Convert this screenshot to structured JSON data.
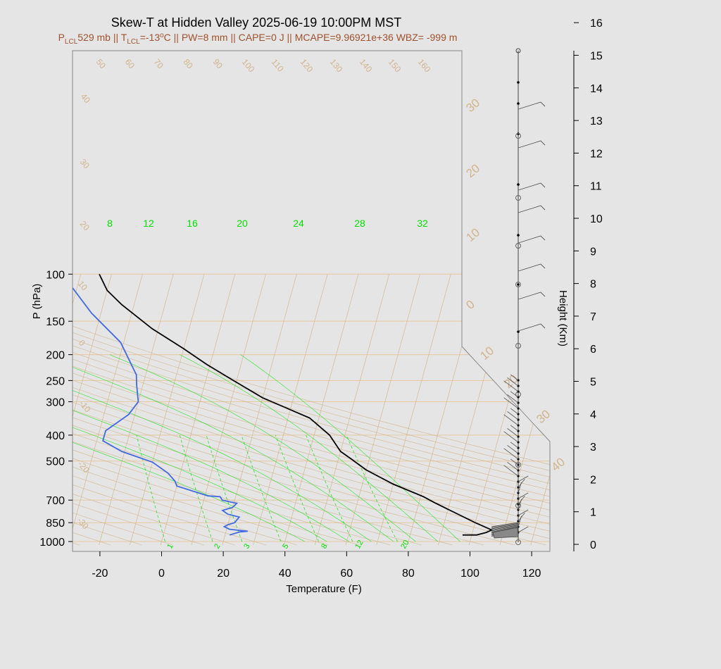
{
  "title": "Skew-T at Hidden Valley 2025-06-19 10:00PM MST",
  "subtitle": "P_LCL=529 mb || T_LCL=-13°C || PW=8 mm || CAPE=0 J || MCAPE=9.96921e+36 WBZ= -999 m",
  "subtitle_parts": {
    "p_lcl": "529 mb",
    "t_lcl": "-13",
    "pw": "PW=8 mm",
    "cape": "CAPE=0 J",
    "mcape": "MCAPE=9.96921e+36",
    "wbz": "WBZ= -999 m"
  },
  "colors": {
    "background": "#e5e5e5",
    "temperature": "#000000",
    "dewpoint": "#4169e1",
    "isotherm": "#d2b48c",
    "mixing_ratio": "#00e000",
    "subtitle": "#a0522d"
  },
  "chart_data": {
    "type": "line",
    "title": "Skew-T at Hidden Valley 2025-06-19 10:00PM MST",
    "xlabel": "Temperature (F)",
    "ylabel": "P (hPa)",
    "y2label": "Height (Km)",
    "xlim": [
      -28,
      125
    ],
    "ylim": [
      1030,
      100
    ],
    "y_scale": "log",
    "x_ticks": [
      -20,
      0,
      20,
      40,
      60,
      80,
      100,
      120
    ],
    "y_ticks": [
      100,
      150,
      200,
      250,
      300,
      400,
      500,
      700,
      850,
      1000
    ],
    "height_ticks": [
      0,
      1,
      2,
      3,
      4,
      5,
      6,
      7,
      8,
      9,
      10,
      11,
      12,
      13,
      14,
      15,
      16
    ],
    "skew_isotherm_labels": [
      -30,
      -20,
      -10,
      0,
      10,
      20,
      30,
      40,
      50,
      60,
      70,
      80,
      90,
      100,
      110,
      120,
      130,
      140,
      150,
      160
    ],
    "big_isotherm_labels": [
      30,
      20,
      10,
      0,
      10,
      20,
      30,
      40
    ],
    "mixing_ratio_top_labels": [
      8,
      12,
      16,
      20,
      24,
      28,
      32
    ],
    "mixing_ratio_bottom_labels": [
      1,
      2,
      3,
      5,
      8,
      12,
      20
    ],
    "series": [
      {
        "name": "Temperature",
        "points": [
          [
            97,
            945
          ],
          [
            101.5,
            945
          ],
          [
            104.5,
            925
          ],
          [
            106,
            905
          ],
          [
            100,
            850
          ],
          [
            92,
            775
          ],
          [
            85,
            715
          ],
          [
            81,
            680
          ],
          [
            78,
            660
          ],
          [
            70,
            610
          ],
          [
            60,
            540
          ],
          [
            54,
            490
          ],
          [
            50,
            460
          ],
          [
            45,
            400
          ],
          [
            37,
            345
          ],
          [
            20,
            290
          ],
          [
            9,
            250
          ],
          [
            -1,
            218
          ],
          [
            -10,
            190
          ],
          [
            -22,
            160
          ],
          [
            -34,
            130
          ],
          [
            -40,
            115
          ],
          [
            -44,
            100
          ]
        ]
      },
      {
        "name": "Dewpoint",
        "points": [
          [
            21.5,
            945
          ],
          [
            24.5,
            920
          ],
          [
            27,
            915
          ],
          [
            21,
            900
          ],
          [
            19,
            880
          ],
          [
            20,
            865
          ],
          [
            22,
            850
          ],
          [
            23,
            810
          ],
          [
            19,
            790
          ],
          [
            17,
            765
          ],
          [
            20,
            745
          ],
          [
            21,
            720
          ],
          [
            16,
            700
          ],
          [
            15,
            680
          ],
          [
            11,
            675
          ],
          [
            0,
            620
          ],
          [
            -1,
            595
          ],
          [
            -4,
            555
          ],
          [
            -10,
            505
          ],
          [
            -21,
            460
          ],
          [
            -28,
            420
          ],
          [
            -28,
            385
          ],
          [
            -22,
            335
          ],
          [
            -20,
            300
          ],
          [
            -22,
            260
          ],
          [
            -23,
            238
          ],
          [
            -31,
            180
          ],
          [
            -43,
            140
          ],
          [
            -56,
            100
          ]
        ]
      }
    ]
  }
}
